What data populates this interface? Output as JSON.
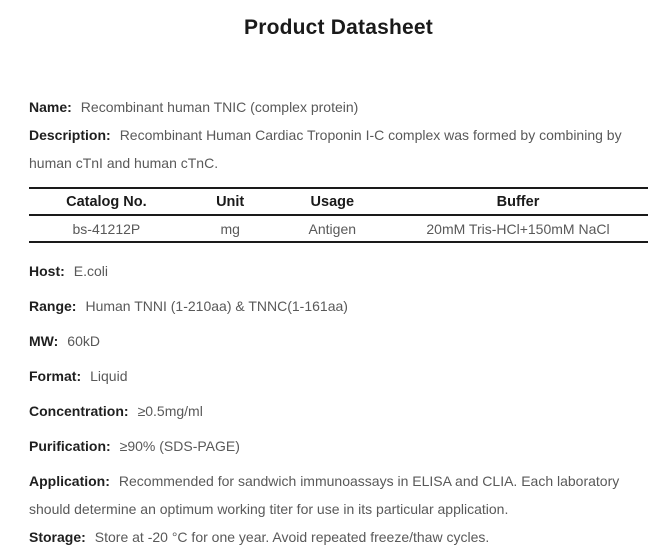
{
  "page": {
    "title": "Product Datasheet"
  },
  "fields_top": [
    {
      "label": "Name:",
      "value": "Recombinant human TNIC (complex protein)"
    },
    {
      "label": "Description:",
      "value": "Recombinant Human Cardiac Troponin I-C complex was formed by combining by human cTnI and human cTnC."
    }
  ],
  "table": {
    "headers": [
      "Catalog No.",
      "Unit",
      "Usage",
      "Buffer"
    ],
    "rows": [
      [
        "bs-41212P",
        "mg",
        "Antigen",
        "20mM Tris-HCl+150mM NaCl"
      ]
    ]
  },
  "fields_bottom": [
    {
      "label": "Host:",
      "value": "E.coli"
    },
    {
      "label": "Range:",
      "value": "Human TNNI (1-210aa) & TNNC(1-161aa)"
    },
    {
      "label": "MW:",
      "value": "60kD"
    },
    {
      "label": "Format:",
      "value": "Liquid"
    },
    {
      "label": "Concentration:",
      "value": "≥0.5mg/ml"
    },
    {
      "label": "Purification:",
      "value": "≥90% (SDS-PAGE)"
    },
    {
      "label": "Application:",
      "value": "Recommended for sandwich immunoassays in ELISA and CLIA. Each laboratory should determine an optimum working titer for use in its particular application."
    },
    {
      "label": "Storage:",
      "value": "Store at -20 °C for one year. Avoid repeated freeze/thaw cycles."
    }
  ],
  "colors": {
    "label_text": "#1f1f1f",
    "value_text": "#595959",
    "table_border": "#1a1a1a",
    "background": "#ffffff"
  }
}
